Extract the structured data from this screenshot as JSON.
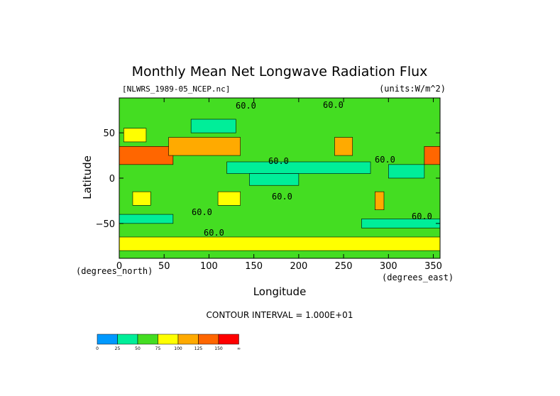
{
  "chart_data": {
    "type": "heatmap",
    "title": "Monthly Mean Net Longwave Radiation Flux",
    "file_label": "[NLWRS_1989-05_NCEP.nc]",
    "units_label": "(units:W/m^2)",
    "xlabel": "Longitude",
    "ylabel": "Latitude",
    "x_unit_label": "(degrees_east)",
    "y_unit_label": "(degrees_north)",
    "xlim": [
      0,
      357.5
    ],
    "ylim": [
      -88.5,
      88.5
    ],
    "x_ticks": [
      0,
      50,
      100,
      150,
      200,
      250,
      300,
      350
    ],
    "y_ticks": [
      50,
      0,
      -50
    ],
    "contour_interval_text": "CONTOUR INTERVAL = 1.000E+01",
    "contour_labels": [
      "60.0",
      "60.0",
      "60.0",
      "60.0",
      "60.0",
      "60.0",
      "60.0",
      "60.0"
    ],
    "colorbar": {
      "levels": [
        "0",
        "25",
        "50",
        "75",
        "100",
        "125",
        "150",
        "∞"
      ],
      "colors": [
        "#0099ff",
        "#00ee99",
        "#44dd22",
        "#ffff00",
        "#ffaa00",
        "#ff6600",
        "#ff0000"
      ]
    },
    "regions": [
      {
        "lon": [
          0,
          360
        ],
        "lat": [
          -90,
          90
        ],
        "band": 2
      },
      {
        "lon": [
          0,
          60
        ],
        "lat": [
          15,
          35
        ],
        "band": 5
      },
      {
        "lon": [
          55,
          135
        ],
        "lat": [
          25,
          45
        ],
        "band": 4
      },
      {
        "lon": [
          5,
          30
        ],
        "lat": [
          40,
          55
        ],
        "band": 3
      },
      {
        "lon": [
          15,
          35
        ],
        "lat": [
          -30,
          -15
        ],
        "band": 3
      },
      {
        "lon": [
          110,
          135
        ],
        "lat": [
          -30,
          -15
        ],
        "band": 3
      },
      {
        "lon": [
          240,
          260
        ],
        "lat": [
          25,
          45
        ],
        "band": 4
      },
      {
        "lon": [
          285,
          295
        ],
        "lat": [
          -35,
          -15
        ],
        "band": 4
      },
      {
        "lon": [
          340,
          357.5
        ],
        "lat": [
          15,
          35
        ],
        "band": 5
      },
      {
        "lon": [
          0,
          357.5
        ],
        "lat": [
          -80,
          -65
        ],
        "band": 3
      },
      {
        "lon": [
          120,
          280
        ],
        "lat": [
          5,
          18
        ],
        "band": 1
      },
      {
        "lon": [
          145,
          200
        ],
        "lat": [
          -8,
          5
        ],
        "band": 1
      },
      {
        "lon": [
          300,
          340
        ],
        "lat": [
          0,
          15
        ],
        "band": 1
      },
      {
        "lon": [
          80,
          130
        ],
        "lat": [
          50,
          65
        ],
        "band": 1
      },
      {
        "lon": [
          0,
          60
        ],
        "lat": [
          -50,
          -40
        ],
        "band": 1
      },
      {
        "lon": [
          270,
          357.5
        ],
        "lat": [
          -55,
          -45
        ],
        "band": 1
      }
    ]
  }
}
